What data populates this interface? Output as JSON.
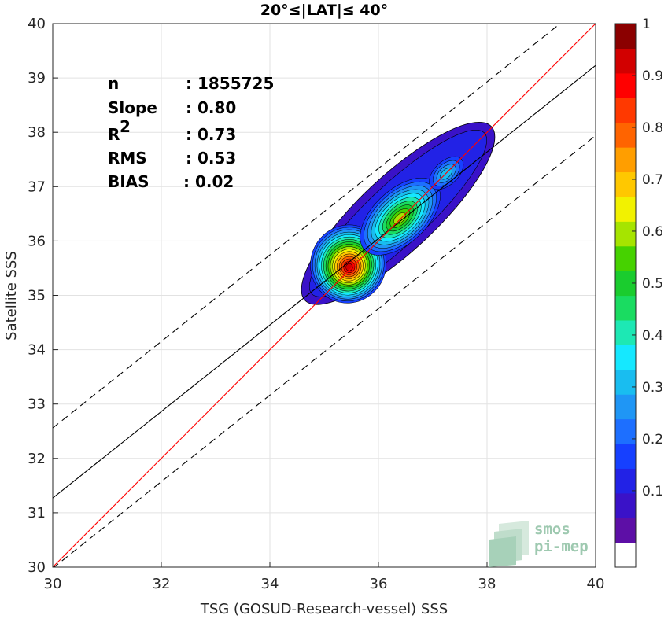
{
  "chart_data": {
    "type": "heatmap",
    "title": "20°≤|LAT|≤ 40°",
    "xlabel": "TSG (GOSUD-Research-vessel) SSS",
    "ylabel": "Satellite SSS",
    "xlim": [
      30,
      40
    ],
    "ylim": [
      30,
      40
    ],
    "xticks": [
      "30",
      "32",
      "34",
      "36",
      "38",
      "40"
    ],
    "yticks": [
      "30",
      "31",
      "32",
      "33",
      "34",
      "35",
      "36",
      "37",
      "38",
      "39",
      "40"
    ],
    "grid": true,
    "stats": [
      {
        "label": "n",
        "value": ": 1855725"
      },
      {
        "label": "Slope",
        "value": ": 0.80"
      },
      {
        "label": "R",
        "sup": "2",
        "value": ": 0.73"
      },
      {
        "label": "RMS",
        "value": ": 0.53"
      },
      {
        "label": "BIAS",
        "value": ": 0.02"
      }
    ],
    "lines": {
      "identity": {
        "x": [
          30,
          40
        ],
        "y": [
          30,
          40
        ],
        "color": "#ff0000"
      },
      "fit": {
        "x": [
          30,
          40
        ],
        "y": [
          31.27,
          39.23
        ],
        "color": "#000000"
      },
      "fit_upper": {
        "x": [
          30,
          40
        ],
        "y": [
          32.56,
          40.52
        ],
        "color": "#000000",
        "dash": true
      },
      "fit_lower": {
        "x": [
          30,
          40
        ],
        "y": [
          29.98,
          37.94
        ],
        "color": "#000000",
        "dash": true
      }
    },
    "density_peaks": [
      {
        "x": 35.3,
        "y": 35.65,
        "value": 1.0
      },
      {
        "x": 36.4,
        "y": 36.45,
        "value": 0.7
      },
      {
        "x": 37.25,
        "y": 37.25,
        "value": 0.3
      }
    ],
    "colorbar": {
      "min": 0,
      "max": 1,
      "levels": 20,
      "ticks": [
        "0.1",
        "0.2",
        "0.3",
        "0.4",
        "0.5",
        "0.6",
        "0.7",
        "0.8",
        "0.9",
        "1"
      ],
      "colors": [
        "#ffffff",
        "#5d0fa6",
        "#3a12c8",
        "#2222e6",
        "#1640ff",
        "#1d6fff",
        "#1f96f5",
        "#19bdf0",
        "#15e8ff",
        "#1de8b4",
        "#1adc61",
        "#1acc2e",
        "#46d200",
        "#a6e400",
        "#f2f200",
        "#ffc800",
        "#ff9e00",
        "#ff6400",
        "#ff3900",
        "#ff0000",
        "#d20000",
        "#8b0000"
      ]
    }
  },
  "logo": {
    "line1": "smos",
    "line2": "pi-mep"
  }
}
